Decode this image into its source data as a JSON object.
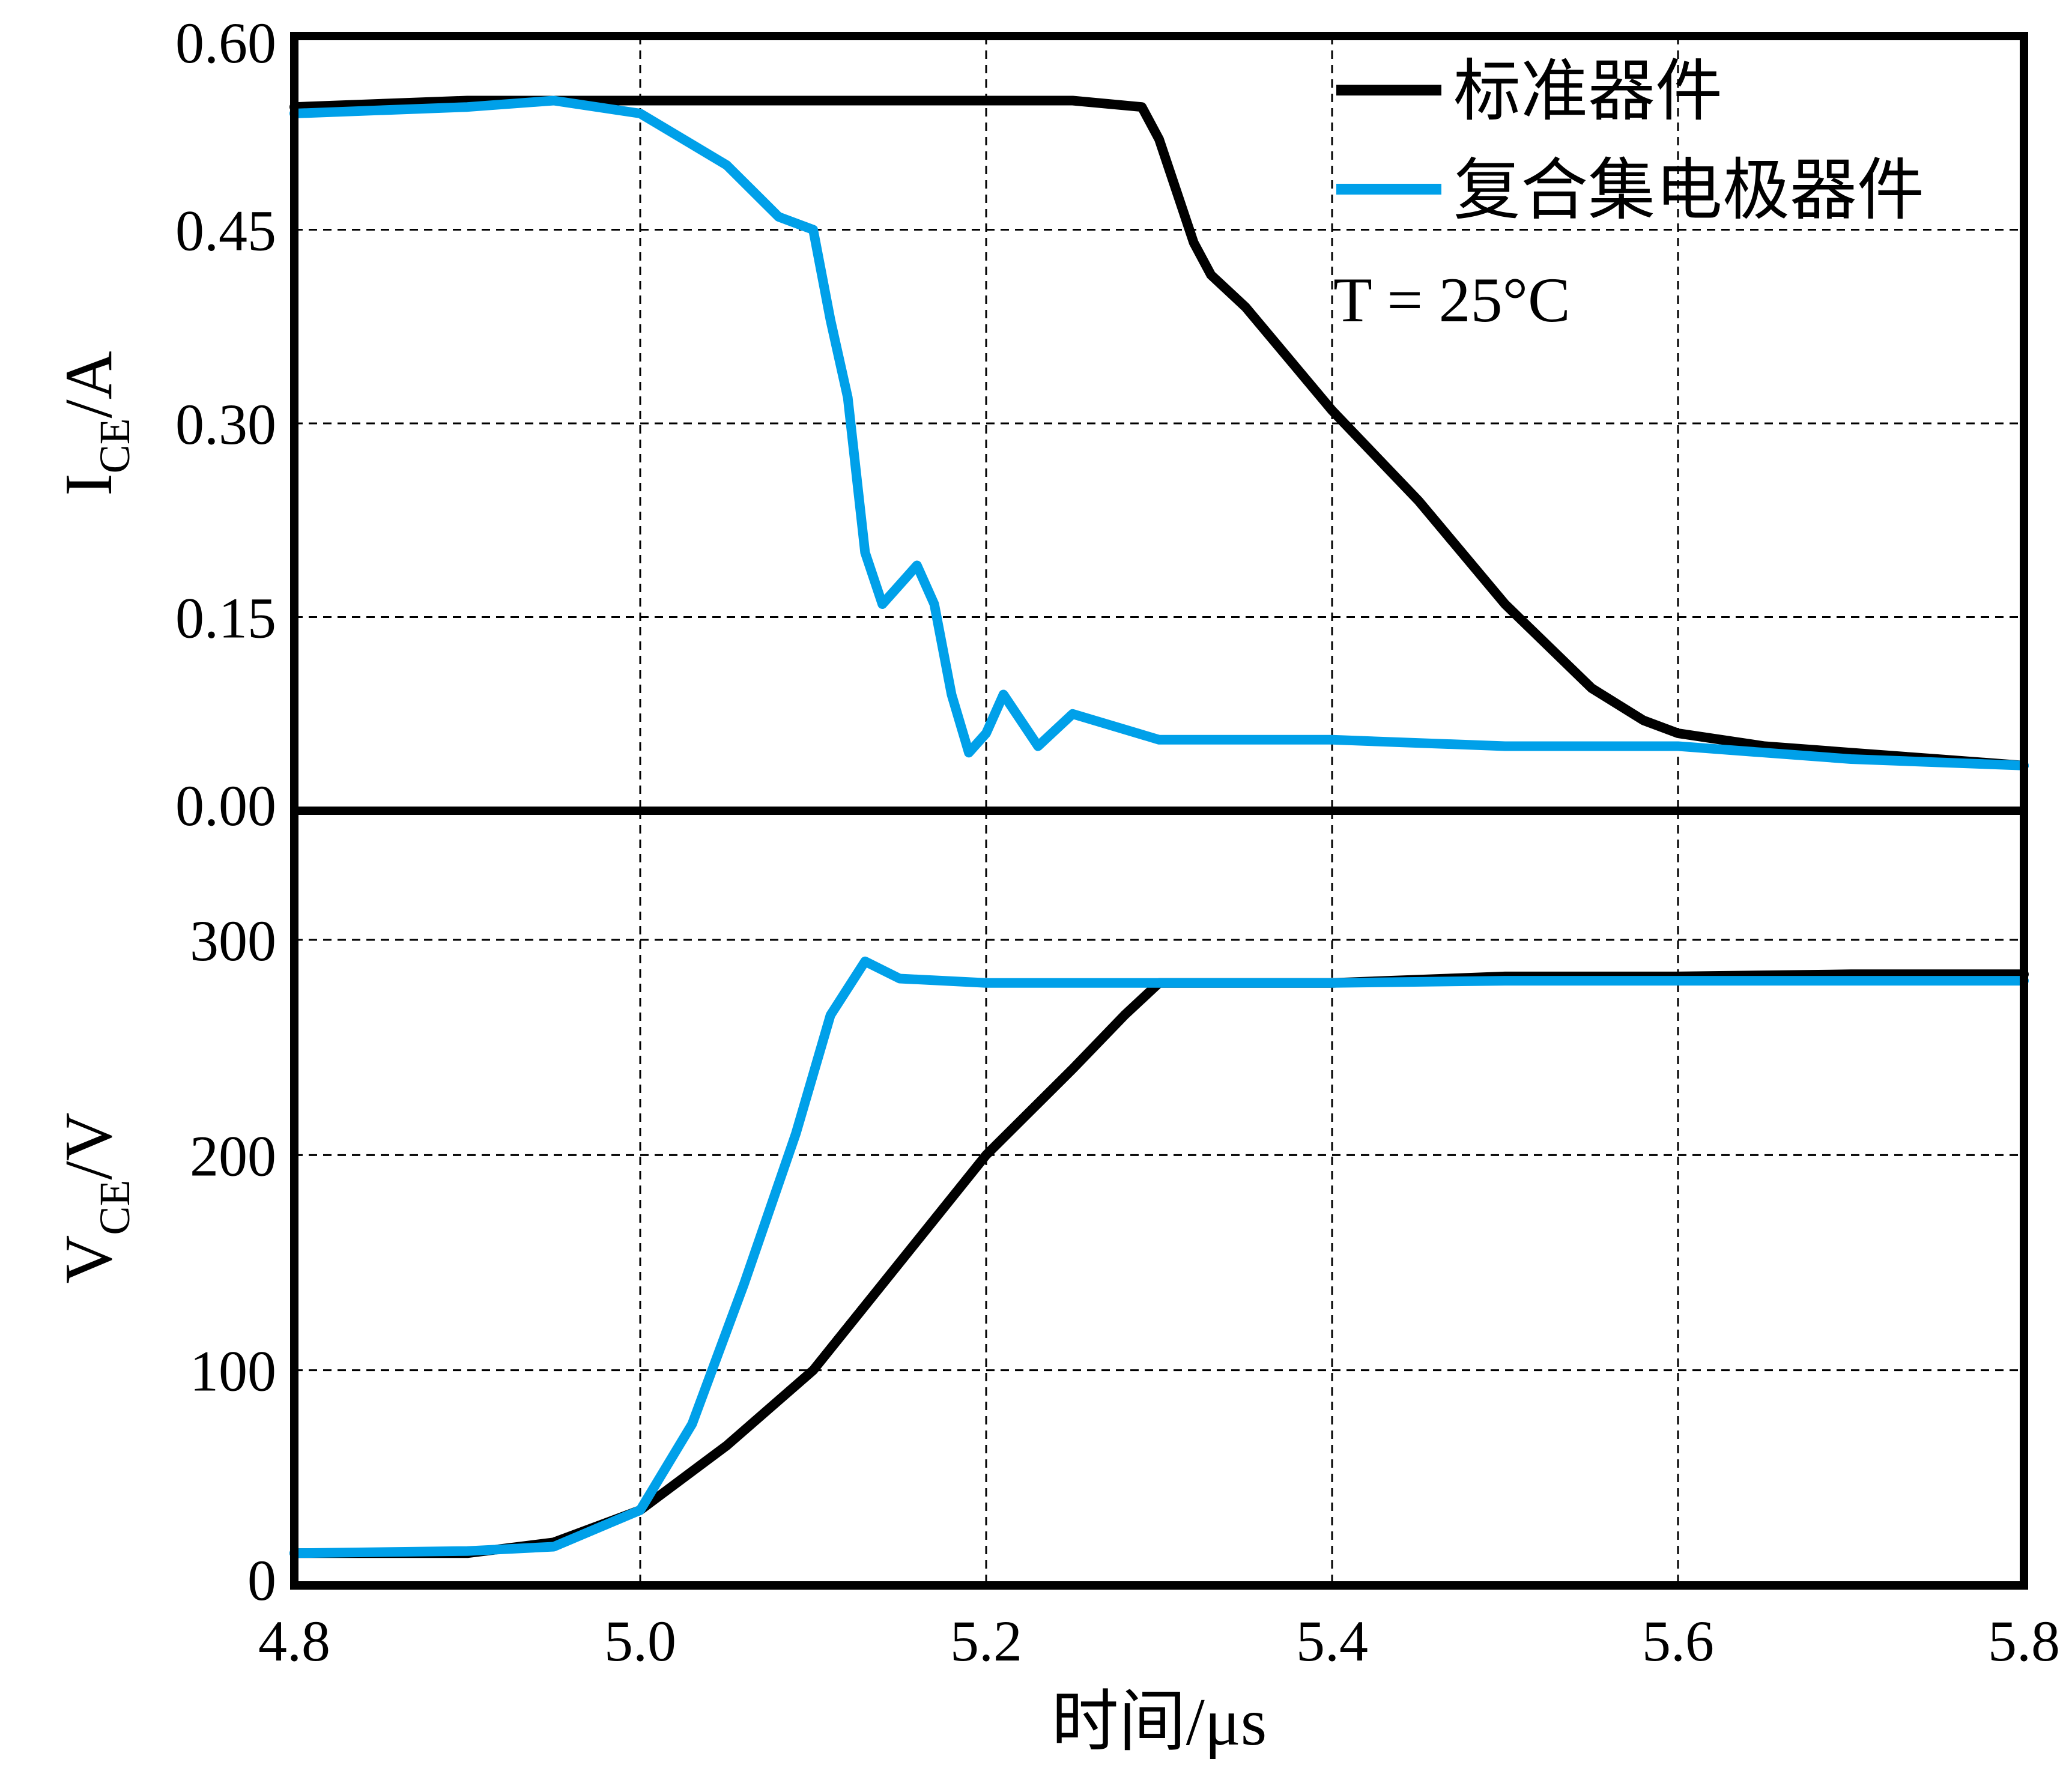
{
  "chart_data": [
    {
      "type": "line",
      "panel": "top",
      "ylabel": {
        "main": "I",
        "sub": "CE",
        "unit": "/A"
      },
      "ylim": [
        0,
        0.6
      ],
      "yticks": [
        "0.00",
        "0.15",
        "0.30",
        "0.45",
        "0.60"
      ],
      "xlim": [
        4.8,
        5.8
      ],
      "grid": true,
      "legend_position": "top-right",
      "annotation": "T = 25°C",
      "series": [
        {
          "name": "标准器件",
          "color": "#000000",
          "x": [
            4.8,
            4.9,
            5.0,
            5.1,
            5.2,
            5.25,
            5.29,
            5.3,
            5.31,
            5.32,
            5.33,
            5.35,
            5.4,
            5.45,
            5.5,
            5.55,
            5.58,
            5.6,
            5.65,
            5.7,
            5.75,
            5.8
          ],
          "y": [
            0.545,
            0.55,
            0.55,
            0.55,
            0.55,
            0.55,
            0.545,
            0.52,
            0.48,
            0.44,
            0.415,
            0.39,
            0.31,
            0.24,
            0.16,
            0.095,
            0.07,
            0.06,
            0.05,
            0.045,
            0.04,
            0.035
          ]
        },
        {
          "name": "复合集电极器件",
          "color": "#00a0e9",
          "x": [
            4.8,
            4.9,
            4.95,
            5.0,
            5.05,
            5.08,
            5.1,
            5.11,
            5.12,
            5.13,
            5.14,
            5.15,
            5.16,
            5.17,
            5.18,
            5.19,
            5.2,
            5.21,
            5.23,
            5.25,
            5.3,
            5.4,
            5.5,
            5.6,
            5.7,
            5.8
          ],
          "y": [
            0.54,
            0.545,
            0.55,
            0.54,
            0.5,
            0.46,
            0.45,
            0.38,
            0.32,
            0.2,
            0.16,
            0.175,
            0.19,
            0.16,
            0.09,
            0.045,
            0.06,
            0.09,
            0.05,
            0.075,
            0.055,
            0.055,
            0.05,
            0.05,
            0.04,
            0.035
          ]
        }
      ]
    },
    {
      "type": "line",
      "panel": "bottom",
      "ylabel": {
        "main": "V",
        "sub": "CE",
        "unit": "/V"
      },
      "xlabel": "时间/μs",
      "ylim": [
        0,
        360
      ],
      "yticks": [
        "0",
        "100",
        "200",
        "300"
      ],
      "xticks": [
        "4.8",
        "5.0",
        "5.2",
        "5.4",
        "5.6",
        "5.8"
      ],
      "xlim": [
        4.8,
        5.8
      ],
      "grid": true,
      "series": [
        {
          "name": "标准器件",
          "color": "#000000",
          "x": [
            4.8,
            4.9,
            4.95,
            5.0,
            5.05,
            5.1,
            5.15,
            5.2,
            5.25,
            5.28,
            5.3,
            5.4,
            5.5,
            5.6,
            5.7,
            5.8
          ],
          "y": [
            15,
            15,
            20,
            35,
            65,
            100,
            150,
            200,
            240,
            265,
            280,
            280,
            283,
            283,
            284,
            284
          ],
          "name_ref": "标准器件"
        },
        {
          "name": "复合集电极器件",
          "color": "#00a0e9",
          "x": [
            4.8,
            4.9,
            4.95,
            5.0,
            5.03,
            5.06,
            5.09,
            5.11,
            5.13,
            5.15,
            5.2,
            5.3,
            5.4,
            5.5,
            5.6,
            5.7,
            5.8
          ],
          "y": [
            15,
            16,
            18,
            35,
            75,
            140,
            210,
            265,
            290,
            282,
            280,
            280,
            280,
            281,
            281,
            281,
            281
          ]
        }
      ]
    }
  ]
}
